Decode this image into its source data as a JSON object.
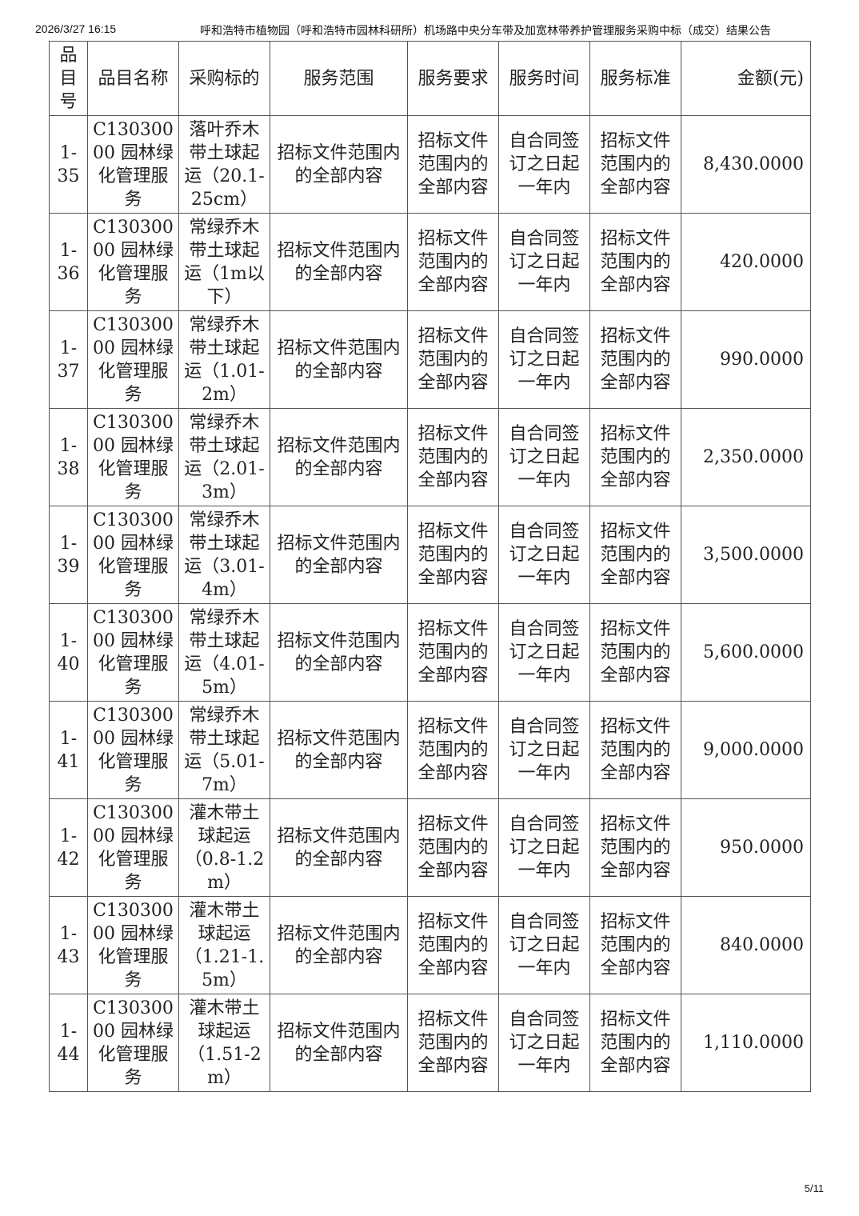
{
  "header": {
    "datetime": "2026/3/27 16:15",
    "title": "呼和浩特市植物园（呼和浩特市园林科研所）机场路中央分车带及加宽林带养护管理服务采购中标（成交）结果公告"
  },
  "footer": {
    "page": "5/11"
  },
  "table": {
    "columns": [
      "品目号",
      "品目名称",
      "采购标的",
      "服务范围",
      "服务要求",
      "服务时间",
      "服务标准",
      "金额(元)"
    ],
    "rows": [
      [
        "1-35",
        "C13030000 园林绿化管理服务",
        "落叶乔木带土球起运（20.1-25cm）",
        "招标文件范围内的全部内容",
        "招标文件范围内的全部内容",
        "自合同签订之日起一年内",
        "招标文件范围内的全部内容",
        "8,430.0000"
      ],
      [
        "1-36",
        "C13030000 园林绿化管理服务",
        "常绿乔木带土球起运（1m以下）",
        "招标文件范围内的全部内容",
        "招标文件范围内的全部内容",
        "自合同签订之日起一年内",
        "招标文件范围内的全部内容",
        "420.0000"
      ],
      [
        "1-37",
        "C13030000 园林绿化管理服务",
        "常绿乔木带土球起运（1.01-2m）",
        "招标文件范围内的全部内容",
        "招标文件范围内的全部内容",
        "自合同签订之日起一年内",
        "招标文件范围内的全部内容",
        "990.0000"
      ],
      [
        "1-38",
        "C13030000 园林绿化管理服务",
        "常绿乔木带土球起运（2.01-3m）",
        "招标文件范围内的全部内容",
        "招标文件范围内的全部内容",
        "自合同签订之日起一年内",
        "招标文件范围内的全部内容",
        "2,350.0000"
      ],
      [
        "1-39",
        "C13030000 园林绿化管理服务",
        "常绿乔木带土球起运（3.01-4m）",
        "招标文件范围内的全部内容",
        "招标文件范围内的全部内容",
        "自合同签订之日起一年内",
        "招标文件范围内的全部内容",
        "3,500.0000"
      ],
      [
        "1-40",
        "C13030000 园林绿化管理服务",
        "常绿乔木带土球起运（4.01-5m）",
        "招标文件范围内的全部内容",
        "招标文件范围内的全部内容",
        "自合同签订之日起一年内",
        "招标文件范围内的全部内容",
        "5,600.0000"
      ],
      [
        "1-41",
        "C13030000 园林绿化管理服务",
        "常绿乔木带土球起运（5.01-7m）",
        "招标文件范围内的全部内容",
        "招标文件范围内的全部内容",
        "自合同签订之日起一年内",
        "招标文件范围内的全部内容",
        "9,000.0000"
      ],
      [
        "1-42",
        "C13030000 园林绿化管理服务",
        "灌木带土球起运（0.8-1.2m）",
        "招标文件范围内的全部内容",
        "招标文件范围内的全部内容",
        "自合同签订之日起一年内",
        "招标文件范围内的全部内容",
        "950.0000"
      ],
      [
        "1-43",
        "C13030000 园林绿化管理服务",
        "灌木带土球起运（1.21-1.5m）",
        "招标文件范围内的全部内容",
        "招标文件范围内的全部内容",
        "自合同签订之日起一年内",
        "招标文件范围内的全部内容",
        "840.0000"
      ],
      [
        "1-44",
        "C13030000 园林绿化管理服务",
        "灌木带土球起运（1.51-2m）",
        "招标文件范围内的全部内容",
        "招标文件范围内的全部内容",
        "自合同签订之日起一年内",
        "招标文件范围内的全部内容",
        "1,110.0000"
      ]
    ]
  }
}
